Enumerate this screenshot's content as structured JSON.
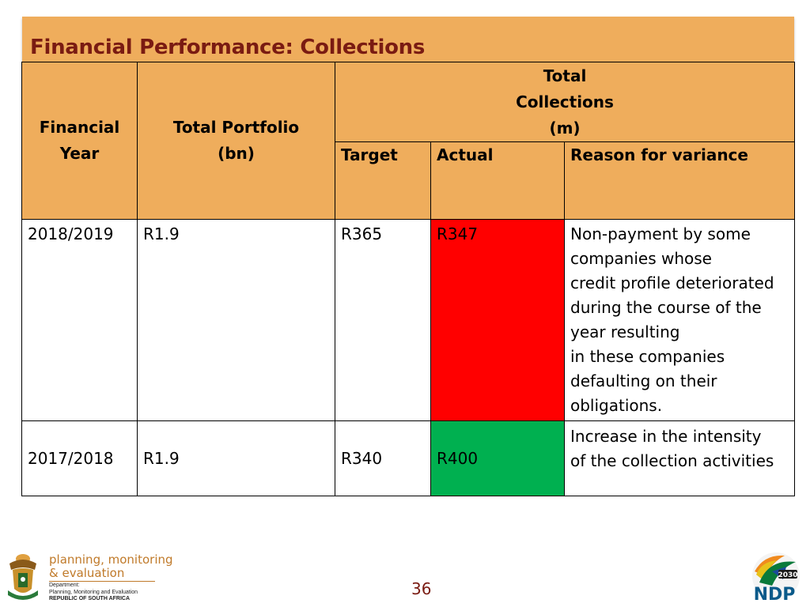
{
  "slide": {
    "title": "Financial Performance: Collections",
    "page_number": "36"
  },
  "table": {
    "header": {
      "col1": [
        "Financial",
        "Year"
      ],
      "col2": [
        "Total Portfolio",
        "(bn)"
      ],
      "group": [
        "Total",
        "Collections",
        "(m)"
      ],
      "target": "Target",
      "actual": "Actual",
      "reason": "Reason for variance"
    },
    "rows": [
      {
        "year": "2018/2019",
        "portfolio": "R1.9",
        "target": "R365",
        "actual": "R347",
        "actual_status": "red",
        "reason_lines": [
          "Non-payment by some",
          "companies whose",
          "credit profile deteriorated",
          "during the course of the",
          "year resulting",
          "in these companies",
          "defaulting on their",
          "obligations."
        ]
      },
      {
        "year": "2017/2018",
        "portfolio": "R1.9",
        "target": "R340",
        "actual": "R400",
        "actual_status": "green",
        "reason_lines": [
          "Increase in the intensity",
          "of the collection activities"
        ]
      }
    ]
  },
  "footer": {
    "pme_line1": "planning, monitoring",
    "pme_line2": "& evaluation",
    "dept_line1": "Department:",
    "dept_line2": "Planning, Monitoring and Evaluation",
    "dept_line3": "REPUBLIC OF SOUTH AFRICA",
    "ndp_label": "NDP",
    "ndp_year": "2030"
  },
  "colors": {
    "header_bg": "#efad5c",
    "title_text": "#7a1b12",
    "status_red": "#ff0000",
    "status_green": "#00b050"
  }
}
